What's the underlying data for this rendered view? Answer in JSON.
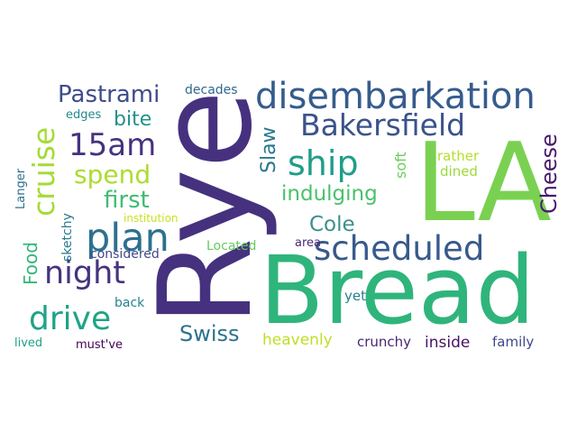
{
  "words": [
    {
      "text": "Bread",
      "color": "#2fb47c"
    },
    {
      "text": "Rye",
      "color": "#46317e"
    },
    {
      "text": "LA",
      "color": "#7ad151"
    },
    {
      "text": "disembarkation",
      "color": "#365c8d"
    },
    {
      "text": "Bakersfield",
      "color": "#3b528b"
    },
    {
      "text": "scheduled",
      "color": "#38598c"
    },
    {
      "text": "cruise",
      "color": "#a5db36"
    },
    {
      "text": "ship",
      "color": "#1f9e89"
    },
    {
      "text": "15am",
      "color": "#46327e"
    },
    {
      "text": "spend",
      "color": "#addc30"
    },
    {
      "text": "plan",
      "color": "#2d708e"
    },
    {
      "text": "night",
      "color": "#46337f"
    },
    {
      "text": "drive",
      "color": "#20a386"
    },
    {
      "text": "Pastrami",
      "color": "#3e4c8a"
    },
    {
      "text": "bite",
      "color": "#21918c"
    },
    {
      "text": "first",
      "color": "#3dbc74"
    },
    {
      "text": "indulging",
      "color": "#4ac16d"
    },
    {
      "text": "Cheese",
      "color": "#481a6c"
    },
    {
      "text": "Slaw",
      "color": "#2a788e"
    },
    {
      "text": "Cole",
      "color": "#3b8f8c"
    },
    {
      "text": "Swiss",
      "color": "#2c728e"
    },
    {
      "text": "Food",
      "color": "#35b779"
    },
    {
      "text": "heavenly",
      "color": "#bddf26"
    },
    {
      "text": "inside",
      "color": "#471164"
    },
    {
      "text": "crunchy",
      "color": "#482576"
    },
    {
      "text": "family",
      "color": "#3f4788"
    },
    {
      "text": "soft",
      "color": "#6ccd5a"
    },
    {
      "text": "rather",
      "color": "#b5de2b"
    },
    {
      "text": "dined",
      "color": "#9dd93b"
    },
    {
      "text": "Langer",
      "color": "#2e6f8e"
    },
    {
      "text": "sketchy",
      "color": "#297a8e"
    },
    {
      "text": "edges",
      "color": "#23898e"
    },
    {
      "text": "decades",
      "color": "#31688e"
    },
    {
      "text": "institution",
      "color": "#cae11f"
    },
    {
      "text": "considered",
      "color": "#3f4889"
    },
    {
      "text": "Located",
      "color": "#63cb5f"
    },
    {
      "text": "area",
      "color": "#482878"
    },
    {
      "text": "back",
      "color": "#25848e"
    },
    {
      "text": "yet",
      "color": "#277f8e"
    },
    {
      "text": "lived",
      "color": "#1fa088"
    },
    {
      "text": "must've",
      "color": "#440154"
    }
  ]
}
